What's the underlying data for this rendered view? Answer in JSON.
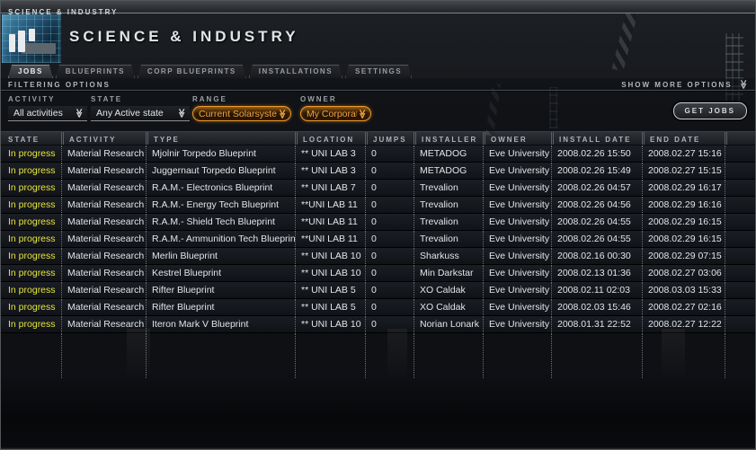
{
  "window": {
    "titlebar_text": "SCIENCE & INDUSTRY",
    "title": "SCIENCE & INDUSTRY"
  },
  "tabs": [
    {
      "label": "JOBS",
      "active": true
    },
    {
      "label": "BLUEPRINTS",
      "active": false
    },
    {
      "label": "CORP BLUEPRINTS",
      "active": false
    },
    {
      "label": "INSTALLATIONS",
      "active": false
    },
    {
      "label": "SETTINGS",
      "active": false
    }
  ],
  "filters": {
    "section_label": "FILTERING OPTIONS",
    "show_more_label": "SHOW MORE OPTIONS",
    "get_jobs_label": "GET JOBS",
    "fields": [
      {
        "label": "ACTIVITY",
        "value": "All activities",
        "style": "plain"
      },
      {
        "label": "STATE",
        "value": "Any Active state",
        "style": "plain"
      },
      {
        "label": "RANGE",
        "value": "Current Solarsystem",
        "style": "orange"
      },
      {
        "label": "OWNER",
        "value": "My Corporation",
        "style": "orange"
      }
    ]
  },
  "icons": {
    "chevron_double": "≫"
  },
  "colors": {
    "accent_orange": "#f2a43e",
    "state_yellow": "#e6e63c",
    "header_text": "#aeb4ba"
  },
  "table": {
    "columns": [
      "STATE",
      "ACTIVITY",
      "TYPE",
      "LOCATION",
      "JUMPS",
      "INSTALLER",
      "OWNER",
      "INSTALL DATE",
      "END DATE"
    ],
    "rows": [
      [
        "In progress",
        "Material Research",
        "Mjolnir Torpedo Blueprint",
        "** UNI LAB 3",
        "0",
        "METADOG",
        "Eve University",
        "2008.02.26 15:50",
        "2008.02.27 15:16"
      ],
      [
        "In progress",
        "Material Research",
        "Juggernaut Torpedo Blueprint",
        "** UNI LAB 3",
        "0",
        "METADOG",
        "Eve University",
        "2008.02.26 15:49",
        "2008.02.27 15:15"
      ],
      [
        "In progress",
        "Material Research",
        "R.A.M.- Electronics Blueprint",
        "** UNI LAB 7",
        "0",
        "Trevalion",
        "Eve University",
        "2008.02.26 04:57",
        "2008.02.29 16:17"
      ],
      [
        "In progress",
        "Material Research",
        "R.A.M.- Energy Tech Blueprint",
        "**UNI LAB 11",
        "0",
        "Trevalion",
        "Eve University",
        "2008.02.26 04:56",
        "2008.02.29 16:16"
      ],
      [
        "In progress",
        "Material Research",
        "R.A.M.- Shield Tech Blueprint",
        "**UNI LAB 11",
        "0",
        "Trevalion",
        "Eve University",
        "2008.02.26 04:55",
        "2008.02.29 16:15"
      ],
      [
        "In progress",
        "Material Research",
        "R.A.M.- Ammunition Tech Blueprint",
        "**UNI LAB 11",
        "0",
        "Trevalion",
        "Eve University",
        "2008.02.26 04:55",
        "2008.02.29 16:15"
      ],
      [
        "In progress",
        "Material Research",
        "Merlin Blueprint",
        "** UNI LAB 10",
        "0",
        "Sharkuss",
        "Eve University",
        "2008.02.16 00:30",
        "2008.02.29 07:15"
      ],
      [
        "In progress",
        "Material Research",
        "Kestrel Blueprint",
        "** UNI LAB 10",
        "0",
        "Min Darkstar",
        "Eve University",
        "2008.02.13 01:36",
        "2008.02.27 03:06"
      ],
      [
        "In progress",
        "Material Research",
        "Rifter Blueprint",
        "** UNI LAB 5",
        "0",
        "XO Caldak",
        "Eve University",
        "2008.02.11 02:03",
        "2008.03.03 15:33"
      ],
      [
        "In progress",
        "Material Research",
        "Rifter Blueprint",
        "** UNI LAB 5",
        "0",
        "XO Caldak",
        "Eve University",
        "2008.02.03 15:46",
        "2008.02.27 02:16"
      ],
      [
        "In progress",
        "Material Research",
        "Iteron Mark V Blueprint",
        "** UNI LAB 10",
        "0",
        "Norian Lonark",
        "Eve University",
        "2008.01.31 22:52",
        "2008.02.27 12:22"
      ]
    ]
  }
}
